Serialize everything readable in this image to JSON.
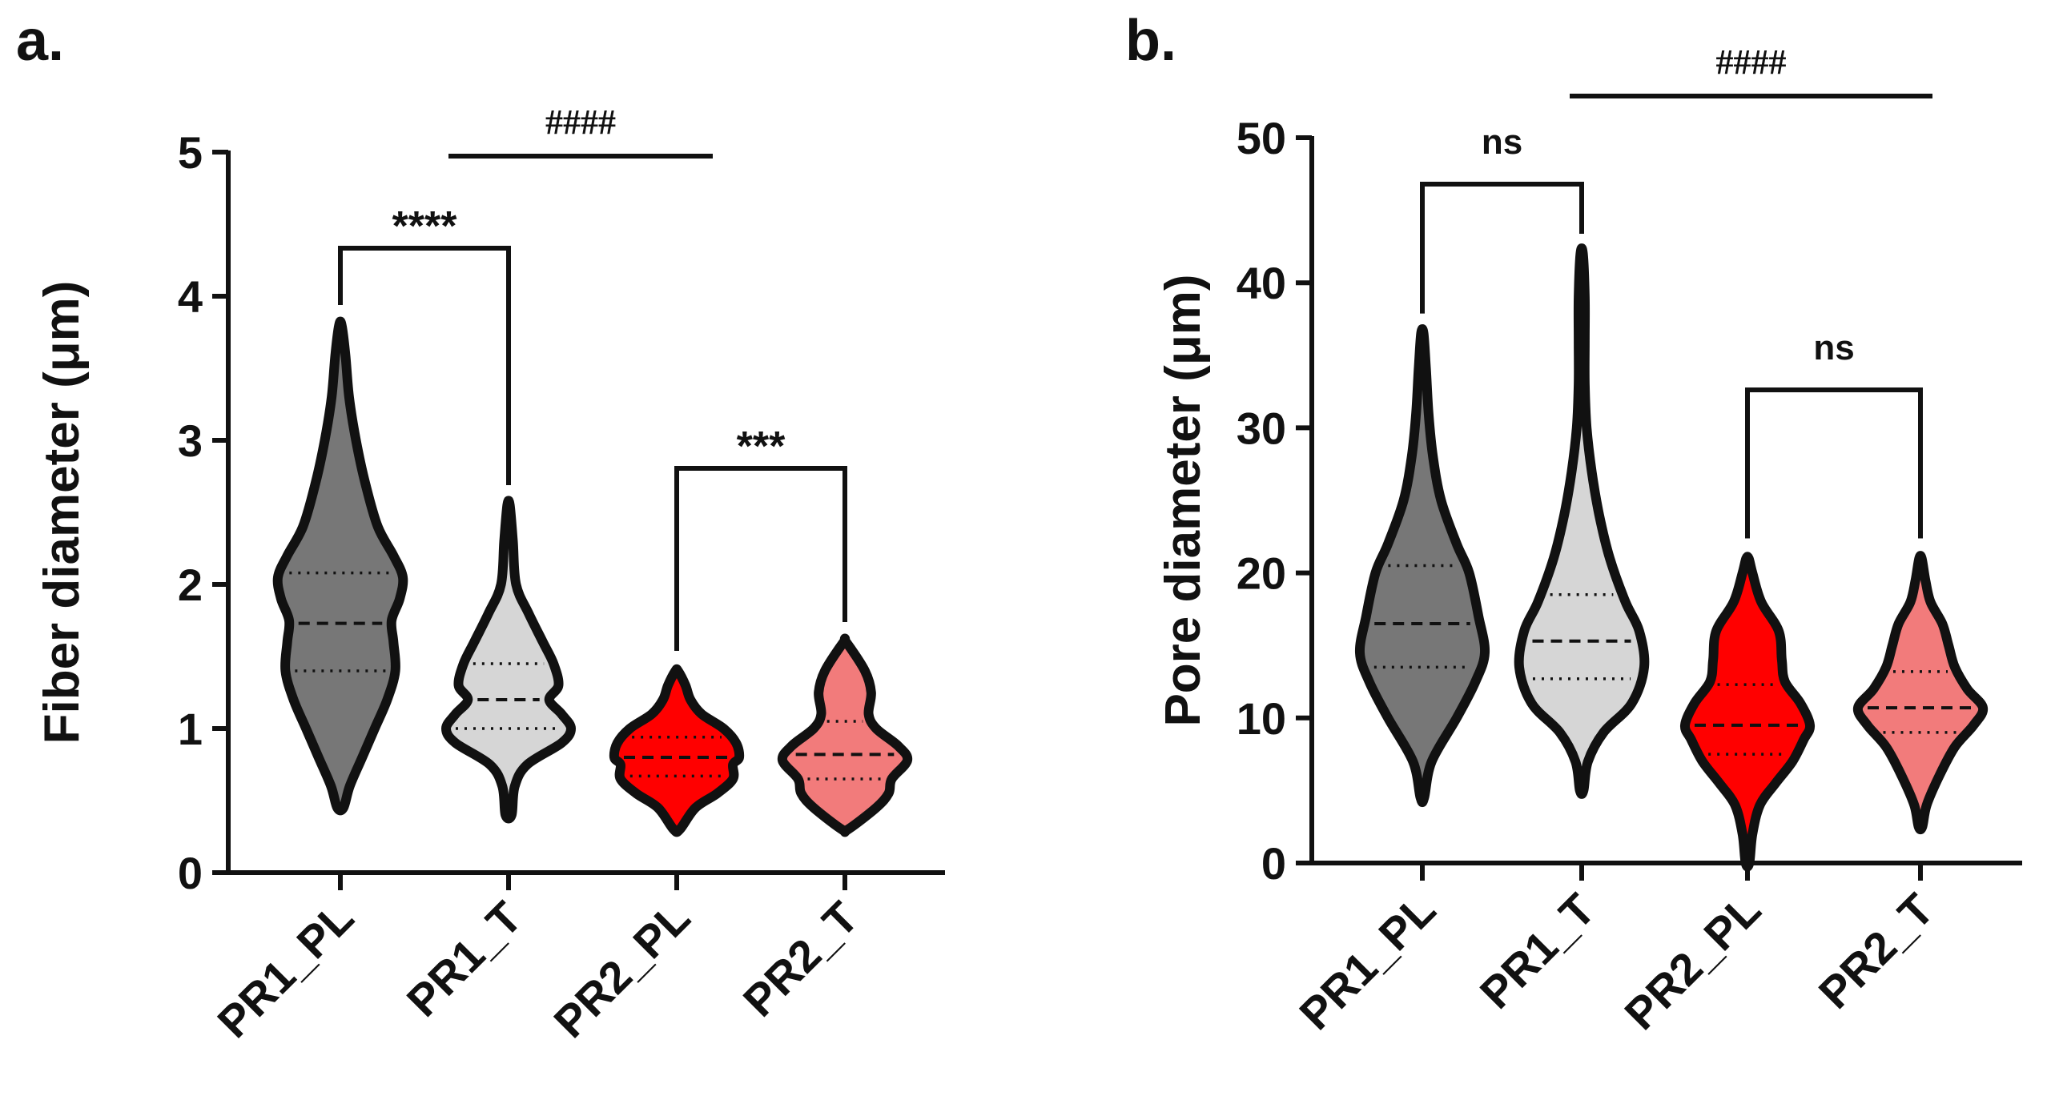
{
  "colors": {
    "dark_gray": "#777777",
    "light_gray": "#d6d6d6",
    "red": "#ff0000",
    "light_red": "#f27b7b",
    "ink": "#111111"
  },
  "chart_data": [
    {
      "panel": "a.",
      "type": "violin",
      "ylabel": "Fiber diameter (μm)",
      "ylim": [
        0,
        5
      ],
      "yticks": [
        "0",
        "1",
        "2",
        "3",
        "4",
        "5"
      ],
      "categories": [
        "PR1_PL",
        "PR1_T",
        "PR2_PL",
        "PR2_T"
      ],
      "series": [
        {
          "name": "PR1_PL",
          "color_key": "dark_gray",
          "min": 0.45,
          "max": 3.8,
          "q1": 1.4,
          "median": 1.73,
          "q3": 2.08,
          "profile": [
            [
              0.45,
              0.05
            ],
            [
              0.6,
              0.15
            ],
            [
              0.8,
              0.35
            ],
            [
              1.0,
              0.55
            ],
            [
              1.2,
              0.75
            ],
            [
              1.4,
              0.88
            ],
            [
              1.6,
              0.85
            ],
            [
              1.75,
              0.82
            ],
            [
              1.9,
              0.95
            ],
            [
              2.05,
              1.0
            ],
            [
              2.2,
              0.85
            ],
            [
              2.4,
              0.6
            ],
            [
              2.7,
              0.4
            ],
            [
              3.0,
              0.25
            ],
            [
              3.3,
              0.14
            ],
            [
              3.6,
              0.08
            ],
            [
              3.8,
              0.02
            ]
          ]
        },
        {
          "name": "PR1_T",
          "color_key": "light_gray",
          "min": 0.4,
          "max": 2.55,
          "q1": 1.0,
          "median": 1.2,
          "q3": 1.45,
          "profile": [
            [
              0.4,
              0.05
            ],
            [
              0.6,
              0.1
            ],
            [
              0.75,
              0.3
            ],
            [
              0.9,
              0.85
            ],
            [
              1.0,
              1.0
            ],
            [
              1.1,
              0.85
            ],
            [
              1.2,
              0.65
            ],
            [
              1.3,
              0.8
            ],
            [
              1.45,
              0.72
            ],
            [
              1.6,
              0.55
            ],
            [
              1.8,
              0.32
            ],
            [
              2.0,
              0.12
            ],
            [
              2.3,
              0.07
            ],
            [
              2.55,
              0.02
            ]
          ]
        },
        {
          "name": "PR2_PL",
          "color_key": "red",
          "min": 0.3,
          "max": 1.4,
          "q1": 0.67,
          "median": 0.8,
          "q3": 0.94,
          "profile": [
            [
              0.3,
              0.05
            ],
            [
              0.45,
              0.3
            ],
            [
              0.55,
              0.65
            ],
            [
              0.65,
              0.9
            ],
            [
              0.75,
              0.9
            ],
            [
              0.8,
              1.0
            ],
            [
              0.9,
              0.95
            ],
            [
              1.0,
              0.75
            ],
            [
              1.1,
              0.4
            ],
            [
              1.2,
              0.22
            ],
            [
              1.3,
              0.14
            ],
            [
              1.4,
              0.02
            ]
          ]
        },
        {
          "name": "PR2_T",
          "color_key": "light_red",
          "min": 0.3,
          "max": 1.6,
          "q1": 0.65,
          "median": 0.82,
          "q3": 1.05,
          "profile": [
            [
              0.3,
              0.05
            ],
            [
              0.45,
              0.5
            ],
            [
              0.55,
              0.7
            ],
            [
              0.65,
              0.75
            ],
            [
              0.78,
              1.0
            ],
            [
              0.88,
              0.85
            ],
            [
              1.0,
              0.5
            ],
            [
              1.1,
              0.38
            ],
            [
              1.25,
              0.42
            ],
            [
              1.4,
              0.32
            ],
            [
              1.6,
              0.02
            ]
          ]
        }
      ],
      "comparisons": [
        {
          "from": 0,
          "to": 1,
          "label": "****",
          "label_size": "big"
        },
        {
          "from": 2,
          "to": 3,
          "label": "***",
          "label_size": "big"
        },
        {
          "from": 1,
          "to": 2,
          "label": "####",
          "label_size": "hash",
          "bar_only": true
        }
      ]
    },
    {
      "panel": "b.",
      "type": "violin",
      "ylabel": "Pore diameter (μm)",
      "ylim": [
        0,
        50
      ],
      "yticks": [
        "0",
        "10",
        "20",
        "30",
        "40",
        "50"
      ],
      "categories": [
        "PR1_PL",
        "PR1_T",
        "PR2_PL",
        "PR2_T"
      ],
      "series": [
        {
          "name": "PR1_PL",
          "color_key": "dark_gray",
          "min": 4.5,
          "max": 36.5,
          "q1": 13.5,
          "median": 16.5,
          "q3": 20.5,
          "profile": [
            [
              4.5,
              0.03
            ],
            [
              7,
              0.15
            ],
            [
              10,
              0.55
            ],
            [
              12.5,
              0.85
            ],
            [
              14.5,
              1.0
            ],
            [
              17,
              0.9
            ],
            [
              20,
              0.75
            ],
            [
              22,
              0.55
            ],
            [
              25,
              0.3
            ],
            [
              28,
              0.17
            ],
            [
              31,
              0.1
            ],
            [
              34,
              0.06
            ],
            [
              36.5,
              0.02
            ]
          ]
        },
        {
          "name": "PR1_T",
          "color_key": "light_gray",
          "min": 5,
          "max": 42,
          "q1": 12.7,
          "median": 15.3,
          "q3": 18.5,
          "profile": [
            [
              5,
              0.03
            ],
            [
              7,
              0.1
            ],
            [
              9,
              0.35
            ],
            [
              11,
              0.8
            ],
            [
              13.5,
              1.0
            ],
            [
              16,
              0.92
            ],
            [
              18,
              0.7
            ],
            [
              21,
              0.45
            ],
            [
              24,
              0.28
            ],
            [
              27,
              0.16
            ],
            [
              30,
              0.08
            ],
            [
              33,
              0.05
            ],
            [
              36,
              0.05
            ],
            [
              39,
              0.05
            ],
            [
              42,
              0.02
            ]
          ]
        },
        {
          "name": "PR2_PL",
          "color_key": "red",
          "min": 0,
          "max": 21,
          "q1": 7.5,
          "median": 9.5,
          "q3": 12.3,
          "profile": [
            [
              0,
              0.03
            ],
            [
              2,
              0.08
            ],
            [
              4,
              0.2
            ],
            [
              5.5,
              0.45
            ],
            [
              7,
              0.72
            ],
            [
              8.5,
              0.9
            ],
            [
              9.5,
              1.0
            ],
            [
              11,
              0.85
            ],
            [
              12.5,
              0.6
            ],
            [
              14,
              0.55
            ],
            [
              16,
              0.5
            ],
            [
              18,
              0.22
            ],
            [
              20,
              0.08
            ],
            [
              21,
              0.02
            ]
          ]
        },
        {
          "name": "PR2_T",
          "color_key": "light_red",
          "min": 2.5,
          "max": 21,
          "q1": 9,
          "median": 10.7,
          "q3": 13.2,
          "profile": [
            [
              2.5,
              0.03
            ],
            [
              4,
              0.1
            ],
            [
              6,
              0.3
            ],
            [
              8,
              0.55
            ],
            [
              9.5,
              0.85
            ],
            [
              10.7,
              1.0
            ],
            [
              12,
              0.75
            ],
            [
              13.5,
              0.55
            ],
            [
              15,
              0.45
            ],
            [
              16.5,
              0.35
            ],
            [
              18,
              0.16
            ],
            [
              19.5,
              0.08
            ],
            [
              21,
              0.02
            ]
          ]
        }
      ],
      "comparisons": [
        {
          "from": 0,
          "to": 1,
          "label": "ns",
          "label_size": "small"
        },
        {
          "from": 2,
          "to": 3,
          "label": "ns",
          "label_size": "small"
        },
        {
          "from": 1,
          "to": 3,
          "label": "####",
          "label_size": "hash",
          "bar_only": true
        }
      ]
    }
  ]
}
